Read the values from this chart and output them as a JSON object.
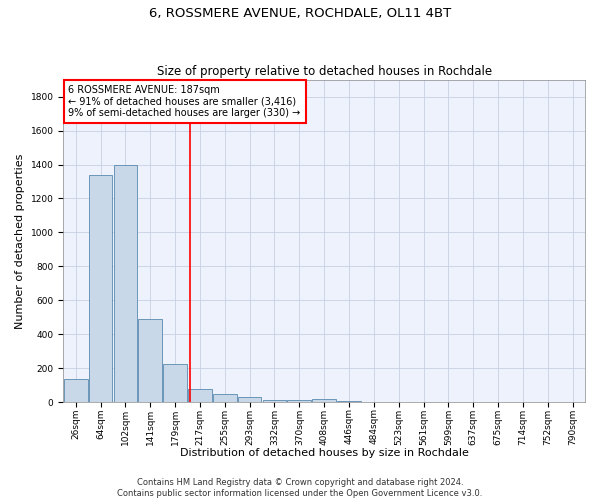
{
  "title": "6, ROSSMERE AVENUE, ROCHDALE, OL11 4BT",
  "subtitle": "Size of property relative to detached houses in Rochdale",
  "xlabel": "Distribution of detached houses by size in Rochdale",
  "ylabel": "Number of detached properties",
  "bar_color": "#c8d8e8",
  "bar_edge_color": "#5a8ab0",
  "categories": [
    "26sqm",
    "64sqm",
    "102sqm",
    "141sqm",
    "179sqm",
    "217sqm",
    "255sqm",
    "293sqm",
    "332sqm",
    "370sqm",
    "408sqm",
    "446sqm",
    "484sqm",
    "523sqm",
    "561sqm",
    "599sqm",
    "637sqm",
    "675sqm",
    "714sqm",
    "752sqm",
    "790sqm"
  ],
  "values": [
    135,
    1340,
    1400,
    490,
    225,
    75,
    45,
    28,
    15,
    10,
    20,
    5,
    0,
    0,
    0,
    0,
    0,
    0,
    0,
    0,
    0
  ],
  "annotation_line1": "6 ROSSMERE AVENUE: 187sqm",
  "annotation_line2": "← 91% of detached houses are smaller (3,416)",
  "annotation_line3": "9% of semi-detached houses are larger (330) →",
  "ylim": [
    0,
    1900
  ],
  "yticks": [
    0,
    200,
    400,
    600,
    800,
    1000,
    1200,
    1400,
    1600,
    1800
  ],
  "vline_position": 4.62,
  "footer_line1": "Contains HM Land Registry data © Crown copyright and database right 2024.",
  "footer_line2": "Contains public sector information licensed under the Open Government Licence v3.0.",
  "background_color": "#eef2fc",
  "grid_color": "#c8d0e4",
  "title_fontsize": 9.5,
  "subtitle_fontsize": 8.5,
  "ylabel_fontsize": 8,
  "xlabel_fontsize": 8,
  "tick_fontsize": 6.5,
  "annotation_fontsize": 7,
  "footer_fontsize": 6
}
